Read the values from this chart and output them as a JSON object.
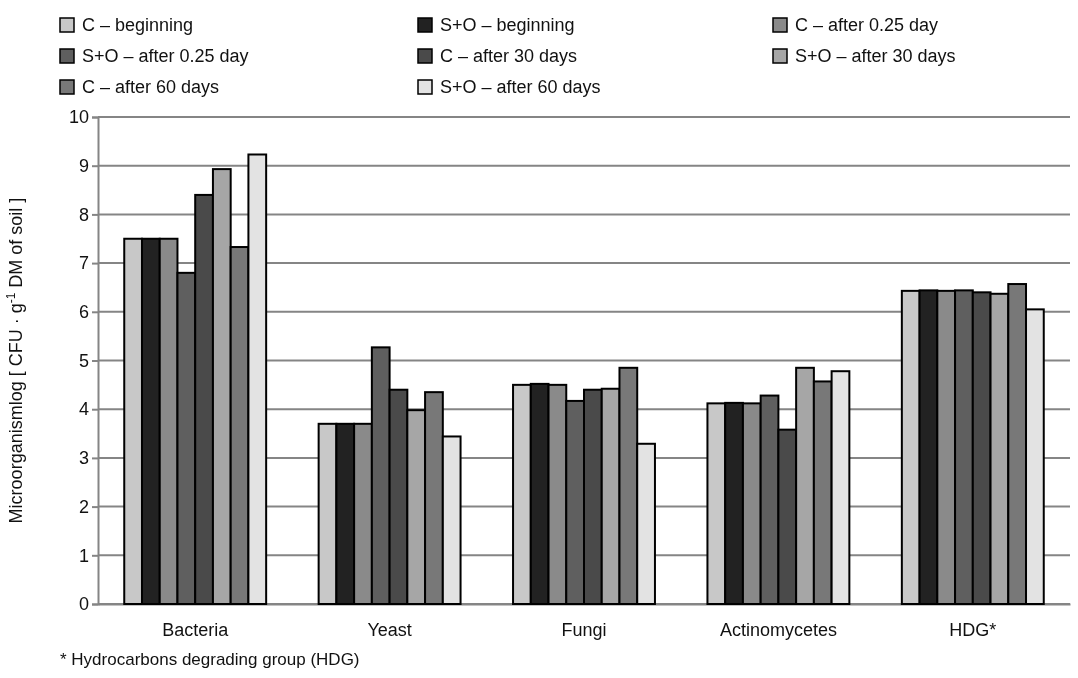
{
  "chart_data": {
    "type": "bar",
    "ylabel": "Microorganismlog [ CFU · g$^{-1}$ DM of soil ]",
    "categories": [
      "Bacteria",
      "Yeast",
      "Fungi",
      "Actinomycetes",
      "HDG*"
    ],
    "series": [
      {
        "name": "C – beginning",
        "color": "#c8c8c8",
        "values": [
          7.5,
          3.7,
          4.5,
          4.12,
          6.43
        ]
      },
      {
        "name": "S+O – beginning",
        "color": "#222222",
        "values": [
          7.5,
          3.7,
          4.52,
          4.13,
          6.44
        ]
      },
      {
        "name": "C – after 0.25 day",
        "color": "#8a8a8a",
        "values": [
          7.5,
          3.7,
          4.5,
          4.12,
          6.43
        ]
      },
      {
        "name": "S+O – after 0.25 day",
        "color": "#5f5f5f",
        "values": [
          6.8,
          5.27,
          4.17,
          4.28,
          6.44
        ]
      },
      {
        "name": "C – after 30 days",
        "color": "#4a4a4a",
        "values": [
          8.4,
          4.4,
          4.4,
          3.58,
          6.4
        ]
      },
      {
        "name": "S+O – after 30 days",
        "color": "#a6a6a6",
        "values": [
          8.93,
          3.98,
          4.42,
          4.85,
          6.37
        ]
      },
      {
        "name": "C – after 60 days",
        "color": "#787878",
        "values": [
          7.33,
          4.35,
          4.85,
          4.57,
          6.57
        ]
      },
      {
        "name": "S+O – after 60 days",
        "color": "#e3e3e3",
        "values": [
          9.23,
          3.44,
          3.29,
          4.78,
          6.05
        ]
      }
    ],
    "ylim": [
      0,
      10
    ],
    "yticks": [
      0,
      1,
      2,
      3,
      4,
      5,
      6,
      7,
      8,
      9,
      10
    ],
    "grid": "y",
    "legend": "top",
    "annotations": [
      "* Hydrocarbons degrading group (HDG)"
    ]
  }
}
